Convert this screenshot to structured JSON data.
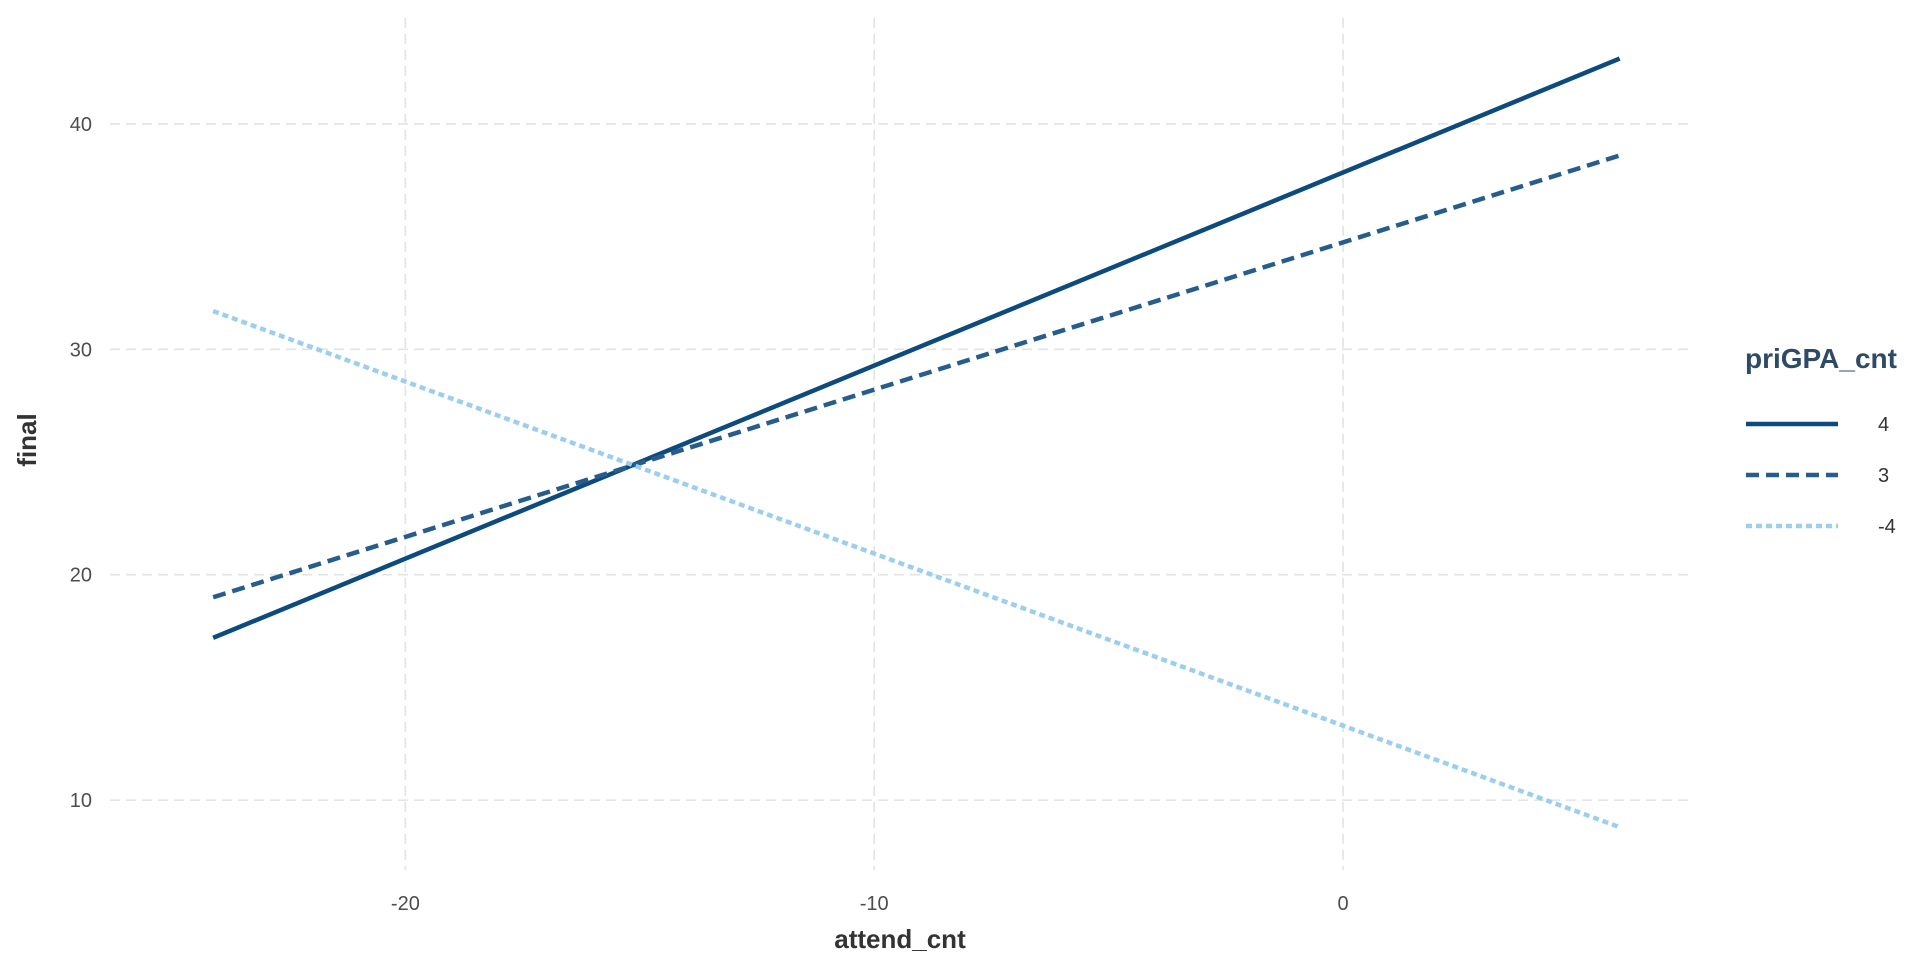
{
  "chart_data": {
    "type": "line",
    "title": "",
    "xlabel": "attend_cnt",
    "ylabel": "final",
    "xlim": [
      -26.3,
      7.4
    ],
    "ylim": [
      6.9,
      44.7
    ],
    "x_ticks": [
      -20,
      -10,
      0
    ],
    "y_ticks": [
      10,
      20,
      30,
      40
    ],
    "grid": true,
    "legend": {
      "title": "priGPA_cnt",
      "position": "right"
    },
    "series": [
      {
        "name": "4",
        "x": [
          -24.1,
          5.9
        ],
        "y": [
          17.2,
          42.9
        ],
        "color": "#0d4a7d",
        "dash": "solid"
      },
      {
        "name": "3",
        "x": [
          -24.1,
          5.9
        ],
        "y": [
          19.0,
          38.6
        ],
        "color": "#275d8c",
        "dash": "dashed"
      },
      {
        "name": "-4",
        "x": [
          -24.1,
          5.9
        ],
        "y": [
          31.7,
          8.8
        ],
        "color": "#9ccfee",
        "dash": "dotted"
      }
    ]
  }
}
